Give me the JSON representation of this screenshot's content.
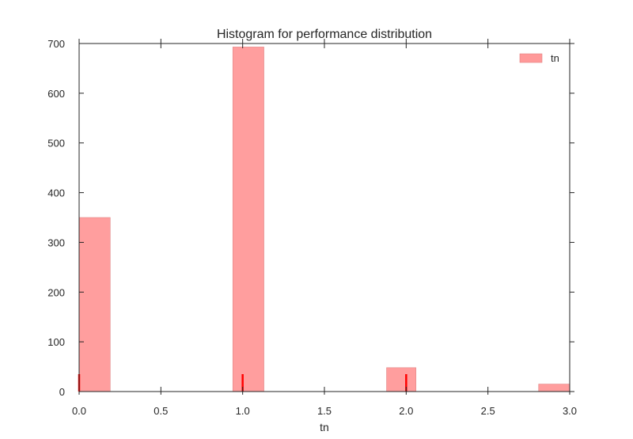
{
  "chart_data": {
    "type": "bar",
    "title": "Histogram for performance distribution",
    "xlabel": "tn",
    "ylabel": "",
    "xlim": [
      0.0,
      3.0
    ],
    "ylim": [
      0,
      700
    ],
    "xticks": [
      0.0,
      0.5,
      1.0,
      1.5,
      2.0,
      2.5,
      3.0
    ],
    "xtick_labels": [
      "0.0",
      "0.5",
      "1.0",
      "1.5",
      "2.0",
      "2.5",
      "3.0"
    ],
    "yticks": [
      0,
      100,
      200,
      300,
      400,
      500,
      600,
      700
    ],
    "ytick_labels": [
      "0",
      "100",
      "200",
      "300",
      "400",
      "500",
      "600",
      "700"
    ],
    "grid": false,
    "legend_position": "top-right",
    "series": [
      {
        "name": "tn",
        "color": "#ff9999",
        "bins": [
          {
            "x0": 0.0,
            "x1": 0.19,
            "count": 350
          },
          {
            "x0": 0.94,
            "x1": 1.13,
            "count": 693
          },
          {
            "x0": 1.88,
            "x1": 2.06,
            "count": 48
          },
          {
            "x0": 2.81,
            "x1": 3.0,
            "count": 15
          }
        ]
      }
    ],
    "rug": {
      "color": "#ff0000",
      "x": [
        0.0,
        1.0,
        2.0
      ]
    }
  }
}
